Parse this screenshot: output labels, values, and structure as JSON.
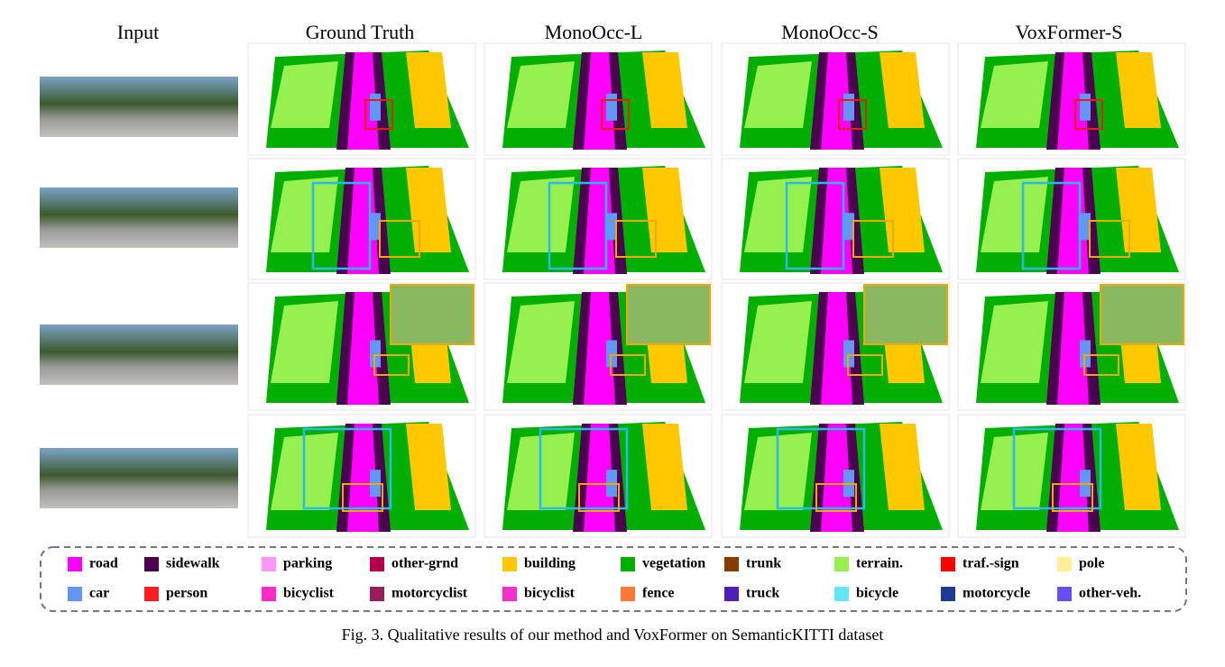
{
  "figure": {
    "headers": [
      "Input",
      "Ground Truth",
      "MonoOcc-L",
      "MonoOcc-S",
      "VoxFormer-S"
    ],
    "legend": [
      {
        "label": "road",
        "color": "#ff00ff"
      },
      {
        "label": "sidewalk",
        "color": "#4b0050"
      },
      {
        "label": "parking",
        "color": "#ff96ff"
      },
      {
        "label": "other-grnd",
        "color": "#af004b"
      },
      {
        "label": "building",
        "color": "#ffc800"
      },
      {
        "label": "vegetation",
        "color": "#00af00"
      },
      {
        "label": "trunk",
        "color": "#873c00"
      },
      {
        "label": "terrain.",
        "color": "#96f050"
      },
      {
        "label": "traf.-sign",
        "color": "#ff0000"
      },
      {
        "label": "pole",
        "color": "#fff096"
      },
      {
        "label": "car",
        "color": "#6496f5"
      },
      {
        "label": "person",
        "color": "#ff1e1e"
      },
      {
        "label": "bicyclist",
        "color": "#ff28c8"
      },
      {
        "label": "motorcyclist",
        "color": "#961e5a"
      },
      {
        "label": "bicyclist",
        "color": "#f030c8"
      },
      {
        "label": "fence",
        "color": "#ff7832"
      },
      {
        "label": "truck",
        "color": "#501eb4"
      },
      {
        "label": "bicycle",
        "color": "#64e6f5"
      },
      {
        "label": "motorcycle",
        "color": "#1e3c96"
      },
      {
        "label": "other-veh.",
        "color": "#6450fa"
      }
    ],
    "caption": "Fig. 3.   Qualitative results of our method and VoxFormer on SemanticKITTI dataset"
  }
}
